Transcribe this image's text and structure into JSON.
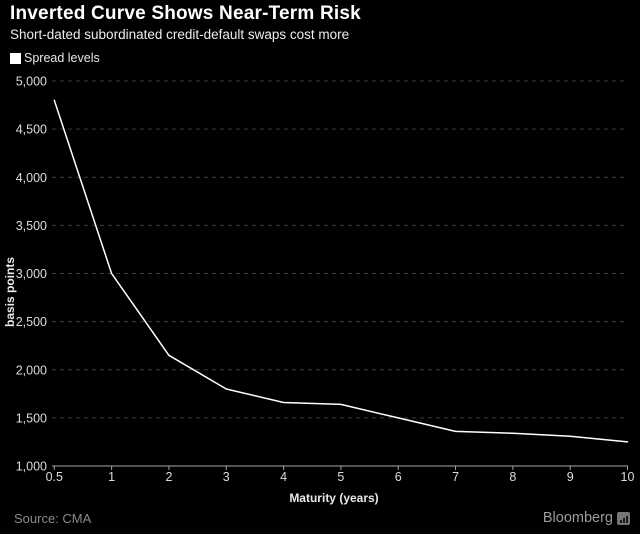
{
  "header": {
    "title": "Inverted Curve Shows Near-Term Risk",
    "subtitle": "Short-dated subordinated credit-default swaps cost more"
  },
  "legend": {
    "swatch_icon": "square-swatch-icon",
    "swatch_color": "#ffffff",
    "label": "Spread levels"
  },
  "chart_data": {
    "type": "line",
    "title": "Inverted Curve Shows Near-Term Risk",
    "categories": [
      "0.5",
      "1",
      "2",
      "3",
      "4",
      "5",
      "6",
      "7",
      "8",
      "9",
      "10"
    ],
    "series": [
      {
        "name": "Spread levels",
        "values": [
          4800,
          3000,
          2150,
          1800,
          1660,
          1640,
          1500,
          1360,
          1340,
          1310,
          1250
        ]
      }
    ],
    "xlabel": "Maturity (years)",
    "ylabel": "basis points",
    "ylim": [
      1000,
      5000
    ],
    "y_ticks": [
      5000,
      4500,
      4000,
      3500,
      3000,
      2500,
      2000,
      1500,
      1000
    ],
    "y_tick_labels": [
      "5,000",
      "4,500",
      "4,000",
      "3,500",
      "3,000",
      "2,500",
      "2,000",
      "1,500",
      "1,000"
    ],
    "grid": "horizontal dashed, solid baseline",
    "legend_position": "top-left",
    "line_color": "#ffffff"
  },
  "footer": {
    "source": "Source: CMA",
    "brand": "Bloomberg",
    "brand_icon": "bloomberg-terminal-icon"
  },
  "colors": {
    "background": "#000000",
    "title": "#ffffff",
    "subtitle": "#ededed",
    "grid": "#3d3d3d",
    "axis": "#a3a3a3",
    "tick_text": "#dcdcdc",
    "axis_title_text": "#e8e8e8",
    "line": "#ffffff",
    "footer_text": "#8a8a8a",
    "brand_text": "#9c9c9c"
  }
}
